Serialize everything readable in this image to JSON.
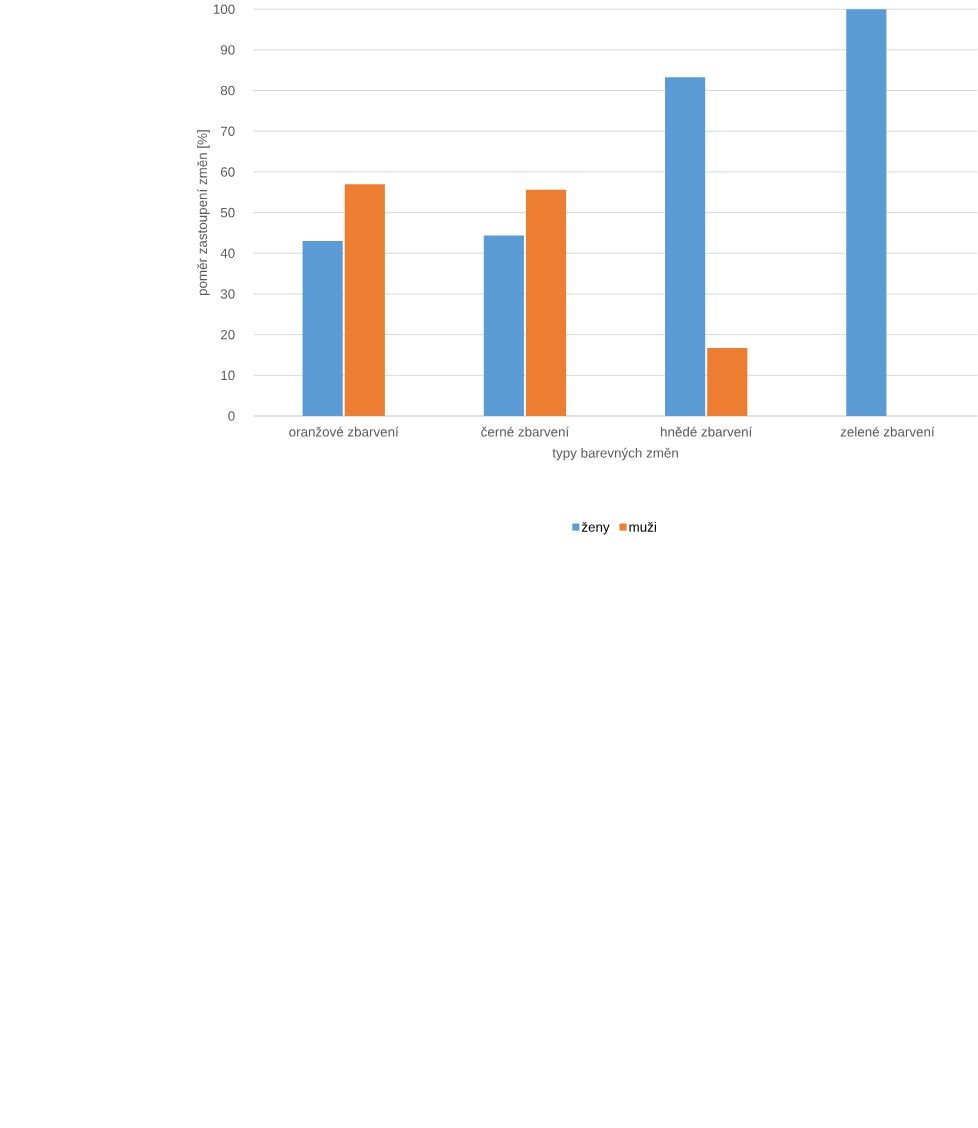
{
  "chart_data": {
    "type": "bar",
    "xlabel": "typy barevných změn",
    "ylabel": "poměr zastoupení změn [%]",
    "categories": [
      "oranžové zbarvení",
      "černé zbarvení",
      "hnědé zbarvení",
      "zelené zbarvení"
    ],
    "series": [
      {
        "name": "ženy",
        "color": "#5b9bd5",
        "values": [
          43,
          44.4,
          83.3,
          100
        ]
      },
      {
        "name": "muži",
        "color": "#ed7d31",
        "values": [
          57,
          55.6,
          16.7,
          0
        ]
      }
    ],
    "ylim": [
      0,
      100
    ],
    "yticks": [
      0,
      10,
      20,
      30,
      40,
      50,
      60,
      70,
      80,
      90,
      100
    ],
    "grid": "y",
    "legend": "bottom"
  }
}
